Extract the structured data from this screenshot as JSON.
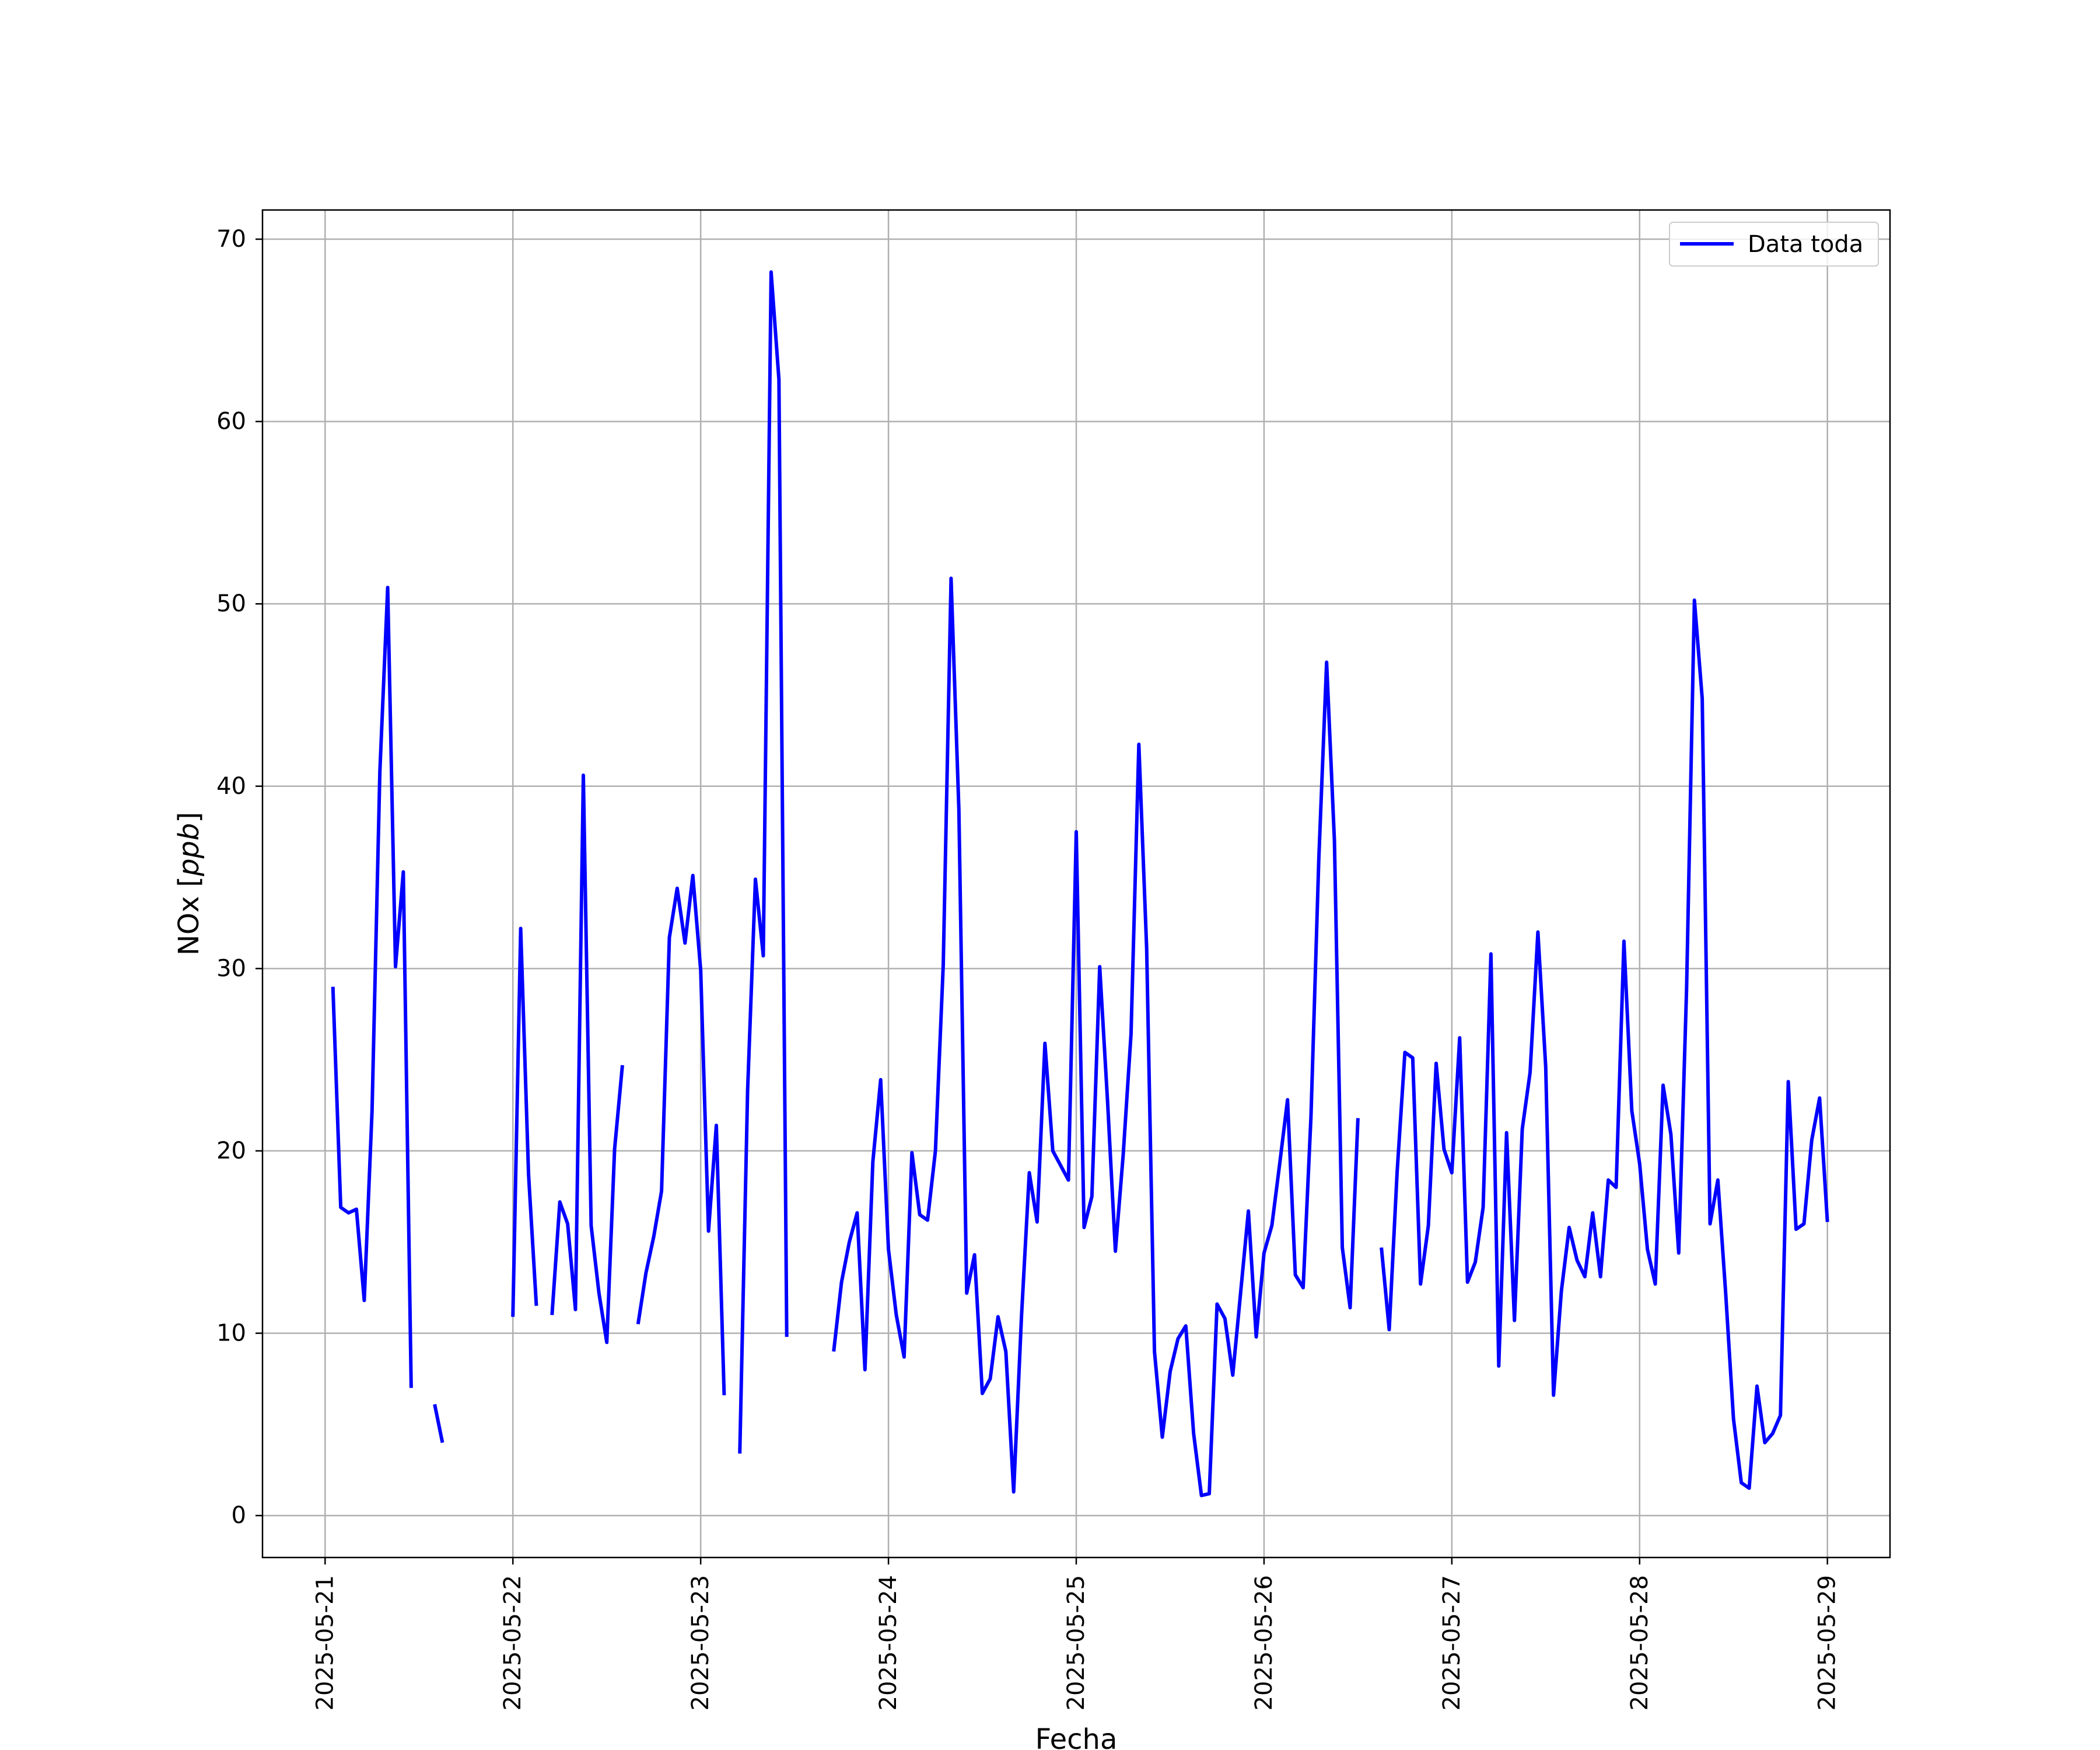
{
  "chart_data": {
    "type": "line",
    "title": "",
    "xlabel": "Fecha",
    "ylabel_main": "NOx [",
    "ylabel_unit": "ppb",
    "ylabel_close": "]",
    "xlim": [
      "2025-05-20T16:00",
      "2025-05-29T08:00"
    ],
    "ylim": [
      -2.3,
      71.6
    ],
    "x_ticks": [
      "2025-05-21",
      "2025-05-22",
      "2025-05-23",
      "2025-05-24",
      "2025-05-25",
      "2025-05-26",
      "2025-05-27",
      "2025-05-28",
      "2025-05-29"
    ],
    "y_ticks": [
      0,
      10,
      20,
      30,
      40,
      50,
      60,
      70
    ],
    "grid": true,
    "legend_position": "upper right",
    "series": [
      {
        "name": "Data toda",
        "color": "#0000ff",
        "segments": [
          [
            [
              "2025-05-21T01:00",
              29.0
            ],
            [
              "2025-05-21T02:00",
              16.9
            ],
            [
              "2025-05-21T03:00",
              16.6
            ],
            [
              "2025-05-21T04:00",
              16.8
            ],
            [
              "2025-05-21T05:00",
              11.8
            ],
            [
              "2025-05-21T06:00",
              22.2
            ],
            [
              "2025-05-21T07:00",
              40.8
            ],
            [
              "2025-05-21T08:00",
              50.9
            ],
            [
              "2025-05-21T09:00",
              30.1
            ],
            [
              "2025-05-21T10:00",
              35.3
            ],
            [
              "2025-05-21T11:00",
              7.0
            ]
          ],
          [
            [
              "2025-05-21T14:00",
              6.1
            ],
            [
              "2025-05-21T15:00",
              4.0
            ]
          ],
          [
            [
              "2025-05-22T00:00",
              10.9
            ],
            [
              "2025-05-22T01:00",
              32.2
            ],
            [
              "2025-05-22T02:00",
              18.7
            ],
            [
              "2025-05-22T03:00",
              11.5
            ]
          ],
          [
            [
              "2025-05-22T05:00",
              11.0
            ],
            [
              "2025-05-22T06:00",
              17.2
            ],
            [
              "2025-05-22T07:00",
              16.0
            ],
            [
              "2025-05-22T08:00",
              11.3
            ],
            [
              "2025-05-22T09:00",
              40.6
            ],
            [
              "2025-05-22T10:00",
              15.9
            ],
            [
              "2025-05-22T11:00",
              12.2
            ],
            [
              "2025-05-22T12:00",
              9.5
            ],
            [
              "2025-05-22T13:00",
              20.1
            ],
            [
              "2025-05-22T14:00",
              24.7
            ]
          ],
          [
            [
              "2025-05-22T16:00",
              10.5
            ],
            [
              "2025-05-22T17:00",
              13.3
            ],
            [
              "2025-05-22T18:00",
              15.3
            ],
            [
              "2025-05-22T19:00",
              17.8
            ],
            [
              "2025-05-22T20:00",
              31.7
            ],
            [
              "2025-05-22T21:00",
              34.4
            ],
            [
              "2025-05-22T22:00",
              31.4
            ],
            [
              "2025-05-22T23:00",
              35.1
            ],
            [
              "2025-05-23T00:00",
              29.9
            ],
            [
              "2025-05-23T01:00",
              15.6
            ],
            [
              "2025-05-23T02:00",
              21.4
            ],
            [
              "2025-05-23T03:00",
              6.6
            ]
          ],
          [
            [
              "2025-05-23T05:00",
              3.4
            ],
            [
              "2025-05-23T06:00",
              23.3
            ],
            [
              "2025-05-23T07:00",
              34.9
            ],
            [
              "2025-05-23T08:00",
              30.7
            ],
            [
              "2025-05-23T09:00",
              68.2
            ],
            [
              "2025-05-23T10:00",
              62.3
            ],
            [
              "2025-05-23T11:00",
              9.8
            ]
          ],
          [
            [
              "2025-05-23T17:00",
              9.0
            ],
            [
              "2025-05-23T18:00",
              12.8
            ],
            [
              "2025-05-23T19:00",
              15.0
            ],
            [
              "2025-05-23T20:00",
              16.6
            ],
            [
              "2025-05-23T21:00",
              8.0
            ],
            [
              "2025-05-23T22:00",
              19.4
            ],
            [
              "2025-05-23T23:00",
              23.9
            ],
            [
              "2025-05-24T00:00",
              14.6
            ],
            [
              "2025-05-24T01:00",
              11.0
            ],
            [
              "2025-05-24T02:00",
              8.7
            ],
            [
              "2025-05-24T03:00",
              19.9
            ],
            [
              "2025-05-24T04:00",
              16.5
            ],
            [
              "2025-05-24T05:00",
              16.2
            ],
            [
              "2025-05-24T06:00",
              20.0
            ],
            [
              "2025-05-24T07:00",
              30.2
            ],
            [
              "2025-05-24T08:00",
              51.4
            ],
            [
              "2025-05-24T09:00",
              38.7
            ],
            [
              "2025-05-24T10:00",
              12.2
            ],
            [
              "2025-05-24T11:00",
              14.3
            ],
            [
              "2025-05-24T12:00",
              6.7
            ],
            [
              "2025-05-24T13:00",
              7.5
            ],
            [
              "2025-05-24T14:00",
              10.9
            ],
            [
              "2025-05-24T15:00",
              9.0
            ],
            [
              "2025-05-24T16:00",
              1.3
            ],
            [
              "2025-05-24T17:00",
              10.9
            ],
            [
              "2025-05-24T18:00",
              18.8
            ],
            [
              "2025-05-24T19:00",
              16.1
            ],
            [
              "2025-05-24T20:00",
              25.9
            ],
            [
              "2025-05-24T21:00",
              20.0
            ],
            [
              "2025-05-24T22:00",
              19.2
            ],
            [
              "2025-05-24T23:00",
              18.4
            ],
            [
              "2025-05-25T00:00",
              37.5
            ],
            [
              "2025-05-25T01:00",
              15.8
            ],
            [
              "2025-05-25T02:00",
              17.5
            ],
            [
              "2025-05-25T03:00",
              30.1
            ],
            [
              "2025-05-25T04:00",
              22.7
            ],
            [
              "2025-05-25T05:00",
              14.5
            ],
            [
              "2025-05-25T06:00",
              19.8
            ],
            [
              "2025-05-25T07:00",
              26.4
            ],
            [
              "2025-05-25T08:00",
              42.3
            ],
            [
              "2025-05-25T09:00",
              31.1
            ],
            [
              "2025-05-25T10:00",
              9.0
            ],
            [
              "2025-05-25T11:00",
              4.3
            ],
            [
              "2025-05-25T12:00",
              7.9
            ],
            [
              "2025-05-25T13:00",
              9.7
            ],
            [
              "2025-05-25T14:00",
              10.4
            ],
            [
              "2025-05-25T15:00",
              4.5
            ],
            [
              "2025-05-25T16:00",
              1.1
            ],
            [
              "2025-05-25T17:00",
              1.2
            ],
            [
              "2025-05-25T18:00",
              11.6
            ],
            [
              "2025-05-25T19:00",
              10.8
            ],
            [
              "2025-05-25T20:00",
              7.7
            ],
            [
              "2025-05-25T21:00",
              12.2
            ],
            [
              "2025-05-25T22:00",
              16.7
            ],
            [
              "2025-05-25T23:00",
              9.8
            ],
            [
              "2025-05-26T00:00",
              14.4
            ],
            [
              "2025-05-26T01:00",
              15.9
            ],
            [
              "2025-05-26T02:00",
              19.3
            ],
            [
              "2025-05-26T03:00",
              22.8
            ],
            [
              "2025-05-26T04:00",
              13.2
            ],
            [
              "2025-05-26T05:00",
              12.5
            ],
            [
              "2025-05-26T06:00",
              21.9
            ],
            [
              "2025-05-26T07:00",
              36.0
            ],
            [
              "2025-05-26T08:00",
              46.8
            ],
            [
              "2025-05-26T09:00",
              37.0
            ],
            [
              "2025-05-26T10:00",
              14.7
            ],
            [
              "2025-05-26T11:00",
              11.4
            ],
            [
              "2025-05-26T12:00",
              21.8
            ]
          ],
          [
            [
              "2025-05-26T15:00",
              14.7
            ],
            [
              "2025-05-26T16:00",
              10.2
            ],
            [
              "2025-05-26T17:00",
              18.8
            ],
            [
              "2025-05-26T18:00",
              25.4
            ],
            [
              "2025-05-26T19:00",
              25.1
            ],
            [
              "2025-05-26T20:00",
              12.7
            ],
            [
              "2025-05-26T21:00",
              15.9
            ],
            [
              "2025-05-26T22:00",
              24.8
            ],
            [
              "2025-05-26T23:00",
              20.1
            ],
            [
              "2025-05-27T00:00",
              18.8
            ],
            [
              "2025-05-27T01:00",
              26.2
            ],
            [
              "2025-05-27T02:00",
              12.8
            ],
            [
              "2025-05-27T03:00",
              13.9
            ],
            [
              "2025-05-27T04:00",
              16.9
            ],
            [
              "2025-05-27T05:00",
              30.8
            ],
            [
              "2025-05-27T06:00",
              8.2
            ],
            [
              "2025-05-27T07:00",
              21.0
            ],
            [
              "2025-05-27T08:00",
              10.7
            ],
            [
              "2025-05-27T09:00",
              21.2
            ],
            [
              "2025-05-27T10:00",
              24.3
            ],
            [
              "2025-05-27T11:00",
              32.0
            ],
            [
              "2025-05-27T12:00",
              24.6
            ],
            [
              "2025-05-27T13:00",
              6.6
            ],
            [
              "2025-05-27T14:00",
              12.3
            ],
            [
              "2025-05-27T15:00",
              15.8
            ],
            [
              "2025-05-27T16:00",
              14.0
            ],
            [
              "2025-05-27T17:00",
              13.1
            ],
            [
              "2025-05-27T18:00",
              16.6
            ],
            [
              "2025-05-27T19:00",
              13.1
            ],
            [
              "2025-05-27T20:00",
              18.4
            ],
            [
              "2025-05-27T21:00",
              18.0
            ],
            [
              "2025-05-27T22:00",
              31.5
            ],
            [
              "2025-05-27T23:00",
              22.2
            ],
            [
              "2025-05-28T00:00",
              19.3
            ],
            [
              "2025-05-28T01:00",
              14.6
            ],
            [
              "2025-05-28T02:00",
              12.7
            ],
            [
              "2025-05-28T03:00",
              23.6
            ],
            [
              "2025-05-28T04:00",
              20.9
            ],
            [
              "2025-05-28T05:00",
              14.4
            ],
            [
              "2025-05-28T06:00",
              28.9
            ],
            [
              "2025-05-28T07:00",
              50.2
            ],
            [
              "2025-05-28T08:00",
              44.8
            ],
            [
              "2025-05-28T09:00",
              16.0
            ],
            [
              "2025-05-28T10:00",
              18.4
            ],
            [
              "2025-05-28T11:00",
              12.2
            ],
            [
              "2025-05-28T12:00",
              5.3
            ],
            [
              "2025-05-28T13:00",
              1.8
            ],
            [
              "2025-05-28T14:00",
              1.5
            ],
            [
              "2025-05-28T15:00",
              7.1
            ],
            [
              "2025-05-28T16:00",
              4.0
            ],
            [
              "2025-05-28T17:00",
              4.5
            ],
            [
              "2025-05-28T18:00",
              5.5
            ],
            [
              "2025-05-28T19:00",
              23.8
            ],
            [
              "2025-05-28T20:00",
              15.7
            ],
            [
              "2025-05-28T21:00",
              16.0
            ],
            [
              "2025-05-28T22:00",
              20.6
            ],
            [
              "2025-05-28T23:00",
              22.9
            ],
            [
              "2025-05-29T00:00",
              16.1
            ]
          ]
        ]
      }
    ]
  }
}
